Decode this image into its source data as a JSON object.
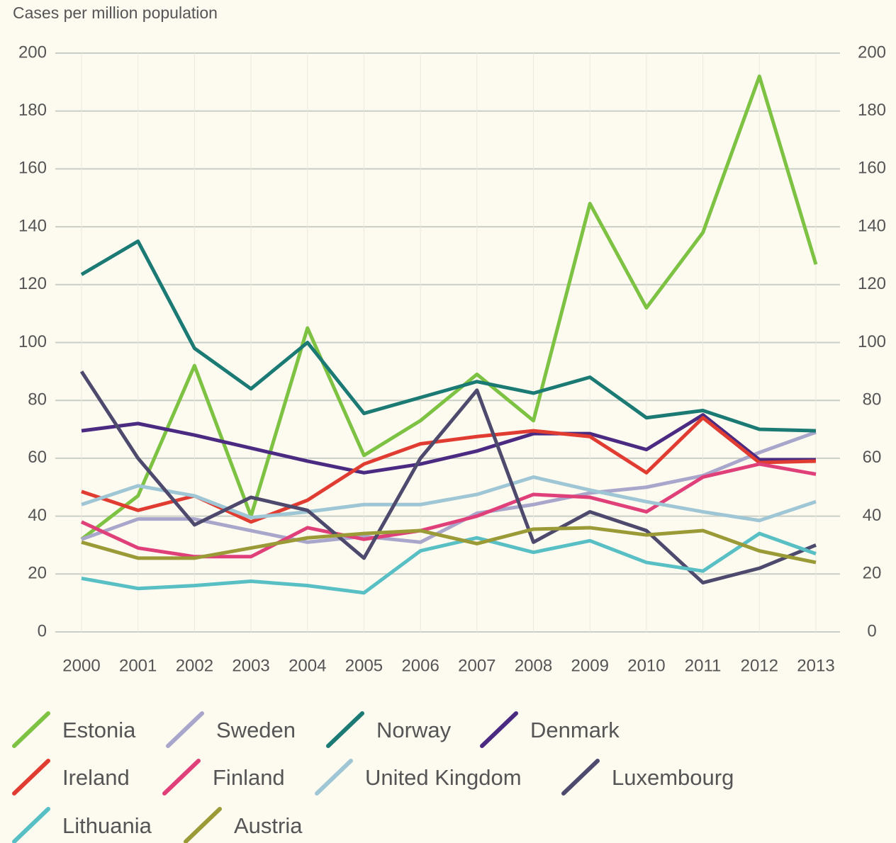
{
  "chart_data": {
    "type": "line",
    "y_axis_label": "Cases per million population",
    "x": [
      "2000",
      "2001",
      "2002",
      "2003",
      "2004",
      "2005",
      "2006",
      "2007",
      "2008",
      "2009",
      "2010",
      "2011",
      "2012",
      "2013"
    ],
    "ylim": [
      0,
      200
    ],
    "yticks": [
      0,
      20,
      40,
      60,
      80,
      100,
      120,
      140,
      160,
      180,
      200
    ],
    "grid": true,
    "series": [
      {
        "name": "Estonia",
        "color": "#7dc242",
        "values": [
          32,
          47,
          92,
          40,
          105,
          61,
          73,
          89,
          73,
          148,
          112,
          138,
          192,
          127
        ]
      },
      {
        "name": "Sweden",
        "color": "#a9a6cc",
        "values": [
          32,
          39,
          39,
          35,
          31,
          33,
          31,
          41,
          44,
          48,
          50,
          54,
          62,
          69
        ]
      },
      {
        "name": "Norway",
        "color": "#1b7a74",
        "values": [
          123.5,
          135,
          98,
          84,
          100,
          75.5,
          81,
          86.5,
          82.5,
          88,
          74,
          76.5,
          70,
          69.5
        ]
      },
      {
        "name": "Denmark",
        "color": "#4b2b82",
        "values": [
          69.5,
          72,
          68,
          63.5,
          59,
          55,
          58,
          62.5,
          68.5,
          68.5,
          63,
          75,
          59.5,
          59.5
        ]
      },
      {
        "name": "Ireland",
        "color": "#e03c31",
        "values": [
          48.5,
          42,
          47,
          38,
          45.5,
          58,
          65,
          67.5,
          69.5,
          67.5,
          55,
          74,
          58.5,
          59
        ]
      },
      {
        "name": "Finland",
        "color": "#e0407a",
        "values": [
          38,
          29,
          26,
          26,
          36,
          32,
          35,
          40,
          47.5,
          46.5,
          41.5,
          53.5,
          58,
          54.5
        ]
      },
      {
        "name": "United Kingdom",
        "color": "#9fc6d4",
        "values": [
          44,
          50.5,
          47,
          39.5,
          41.5,
          44,
          44,
          47.5,
          53.5,
          49,
          45,
          41.5,
          38.5,
          45
        ]
      },
      {
        "name": "Luxembourg",
        "color": "#4d4a6e",
        "values": [
          90,
          60,
          37,
          46.5,
          42,
          25.5,
          60,
          83.5,
          31,
          41.5,
          35,
          17,
          22,
          30
        ]
      },
      {
        "name": "Lithuania",
        "color": "#58bfc4",
        "values": [
          18.5,
          15,
          16,
          17.5,
          16,
          13.5,
          28,
          32.5,
          27.5,
          31.5,
          24,
          21,
          34,
          27
        ]
      },
      {
        "name": "Austria",
        "color": "#9a9a36",
        "values": [
          31,
          25.5,
          25.5,
          29,
          32.5,
          34,
          35,
          30.5,
          35.5,
          36,
          33.5,
          35,
          28,
          24
        ]
      }
    ]
  }
}
